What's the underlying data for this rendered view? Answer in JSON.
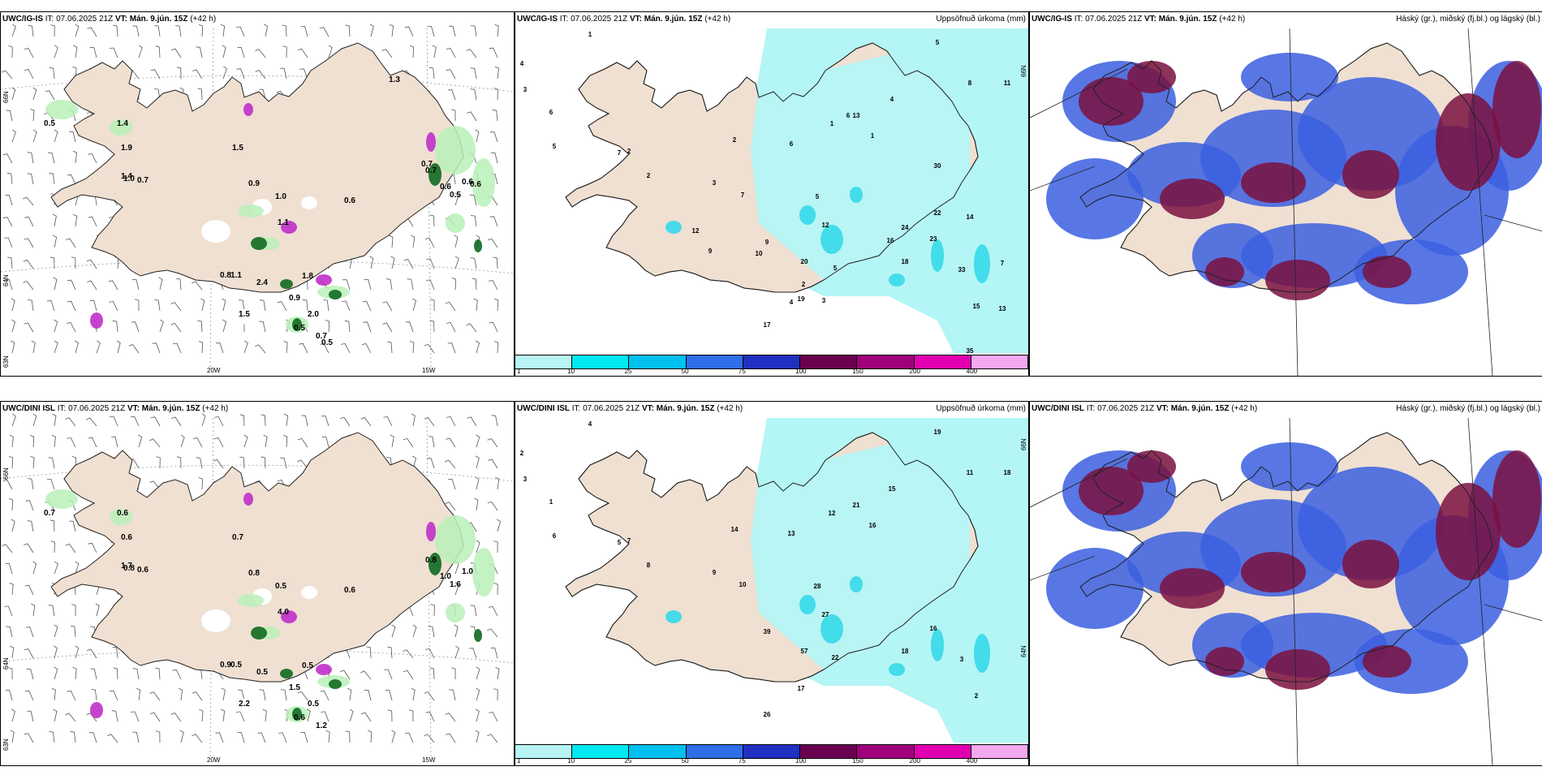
{
  "panels": [
    {
      "model": "UWC/IG-IS",
      "it_label": "IT:",
      "it_value": "07.06.2025 21Z",
      "vt_label": "VT:",
      "vt_value": "Mán. 9.jún. 15Z",
      "lead": "(+42 h)",
      "right_title": "",
      "lat_labels": [
        "66N",
        "64N",
        "63N"
      ],
      "lon_labels": [
        "20W",
        "15W"
      ],
      "values": [
        "0.5",
        "1.4",
        "1.9",
        "1.0",
        "0.7",
        "1.4",
        "1.5",
        "0.9",
        "1.0",
        "0.6",
        "0.7",
        "0.6",
        "0.5",
        "0.6",
        "1.1",
        "0.8",
        "1.1",
        "2.4",
        "1.8",
        "0.9",
        "1.5",
        "2.0",
        "0.5",
        "0.7",
        "0.5",
        "1.3",
        "0.7",
        "0.6"
      ]
    },
    {
      "model": "UWC/IG-IS",
      "it_label": "IT:",
      "it_value": "07.06.2025 21Z",
      "vt_label": "VT:",
      "vt_value": "Mán. 9.jún. 15Z",
      "lead": "(+42 h)",
      "right_title": "Uppsöfnuð úrkoma (mm)",
      "lat_labels": [
        "66N"
      ],
      "lon_labels": [],
      "values": [
        "1",
        "4",
        "3",
        "6",
        "5",
        "7",
        "2",
        "2",
        "3",
        "7",
        "6",
        "2",
        "1",
        "1",
        "4",
        "5",
        "8",
        "11",
        "13",
        "5",
        "9",
        "5",
        "12",
        "20",
        "19",
        "17",
        "18",
        "23",
        "33",
        "15",
        "13",
        "30",
        "22",
        "24",
        "14",
        "16",
        "35",
        "6",
        "10",
        "9",
        "12",
        "7",
        "4",
        "3",
        "2"
      ]
    },
    {
      "model": "UWC/IG-IS",
      "it_label": "IT:",
      "it_value": "07.06.2025 21Z",
      "vt_label": "VT:",
      "vt_value": "Mán. 9.jún. 15Z",
      "lead": "(+42 h)",
      "right_title": "Háský (gr.), miðský (fj.bl.) og lágský (bl.)",
      "lat_labels": [],
      "lon_labels": [],
      "values": []
    },
    {
      "model": "UWC/DINI ISL",
      "it_label": "IT:",
      "it_value": "07.06.2025 21Z",
      "vt_label": "VT:",
      "vt_value": "Mán. 9.jún. 15Z",
      "lead": "(+42 h)",
      "right_title": "",
      "lat_labels": [
        "66N",
        "64N",
        "63N"
      ],
      "lon_labels": [
        "20W",
        "15W"
      ],
      "values": [
        "0.7",
        "0.6",
        "0.6",
        "0.8",
        "0.6",
        "1.7",
        "0.7",
        "0.8",
        "0.5",
        "0.6",
        "0.8",
        "1.0",
        "1.6",
        "1.0",
        "4.0",
        "0.9",
        "0.5",
        "0.5",
        "0.5",
        "1.5",
        "2.2",
        "0.5",
        "0.6",
        "1.2"
      ]
    },
    {
      "model": "UWC/DINI ISL",
      "it_label": "IT:",
      "it_value": "07.06.2025 21Z",
      "vt_label": "VT:",
      "vt_value": "Mán. 9.jún. 15Z",
      "lead": "(+42 h)",
      "right_title": "Uppsöfnuð úrkoma (mm)",
      "lat_labels": [
        "66N",
        "64N"
      ],
      "lon_labels": [],
      "values": [
        "4",
        "2",
        "3",
        "1",
        "6",
        "5",
        "7",
        "8",
        "9",
        "10",
        "13",
        "14",
        "12",
        "16",
        "15",
        "19",
        "11",
        "18",
        "21",
        "22",
        "39",
        "28",
        "27",
        "57",
        "17",
        "26",
        "18",
        "16",
        "3",
        "2"
      ]
    },
    {
      "model": "UWC/DINI ISL",
      "it_label": "IT:",
      "it_value": "07.06.2025 21Z",
      "vt_label": "VT:",
      "vt_value": "Mán. 9.jún. 15Z",
      "lead": "(+42 h)",
      "right_title": "Háský (gr.), miðský (fj.bl.) og lágský (bl.)",
      "lat_labels": [],
      "lon_labels": [],
      "values": []
    }
  ],
  "legend": {
    "labels": [
      "1",
      "10",
      "25",
      "50",
      "75",
      "100",
      "150",
      "200",
      "400"
    ],
    "colors": [
      "#b8f4f4",
      "#00e8f0",
      "#00c0f0",
      "#2e6ee8",
      "#2030c0",
      "#6a0050",
      "#a0007a",
      "#e000b0",
      "#f4a8f0"
    ]
  },
  "colors": {
    "land": "#efe0d2",
    "precip_light": "#b4f5f5",
    "precip_mid": "#35d9ea",
    "cloud_high": "#7a1040",
    "cloud_mid": "#5560c8",
    "cloud_low": "#3b5fe0",
    "green_light": "#b8f0b8",
    "green_dark": "#0f6a20",
    "purple": "#c030c8"
  }
}
